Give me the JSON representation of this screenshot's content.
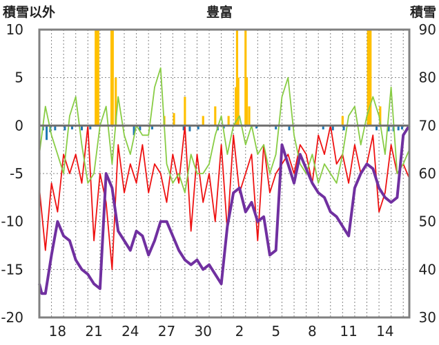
{
  "chart_data": {
    "type": "line",
    "title": "豊富",
    "left_axis_title": "積雪以外",
    "right_axis_title": "積雪",
    "left_ylim": [
      -20,
      10
    ],
    "left_ticks": [
      "10",
      "5",
      "0",
      "-5",
      "-10",
      "-15",
      "-20"
    ],
    "right_ylim": [
      30,
      90
    ],
    "right_ticks": [
      "90",
      "80",
      "70",
      "60",
      "50",
      "40",
      "30"
    ],
    "x_tick_labels": [
      "18",
      "21",
      "24",
      "27",
      "30",
      "2",
      "5",
      "8",
      "11",
      "14"
    ],
    "days_total": 30.5,
    "grid": true,
    "colors": {
      "plot_border": "#808080",
      "grid": "#808080",
      "zero_line": "#707070",
      "red_series": "#ee1111",
      "green_series": "#88cc44",
      "purple_series": "#7030a0",
      "orange_bars": "#ffc000",
      "blue_bars": "#1f77b4"
    },
    "series": [
      {
        "axis": "left",
        "x": [
          0,
          0.5,
          1,
          1.5,
          2,
          2.5,
          3,
          3.5,
          4,
          4.5,
          5,
          5.5,
          6,
          6.5,
          7,
          7.5,
          8,
          8.5,
          9,
          9.5,
          10,
          10.5,
          11,
          11.5,
          12,
          12.5,
          13,
          13.5,
          14,
          14.5,
          15,
          15.5,
          16,
          16.5,
          17,
          17.5,
          18,
          18.5,
          19,
          19.5,
          20,
          20.5,
          21,
          21.5,
          22,
          22.5,
          23,
          23.5,
          24,
          24.5,
          25,
          25.5,
          26,
          26.5,
          27,
          27.5,
          28,
          28.5,
          29,
          29.5,
          30,
          30.5
        ],
        "values": [
          -6.5,
          -13,
          -6,
          -9,
          -3,
          -5,
          -3,
          -6,
          0,
          -12,
          -5,
          -8,
          -15,
          -2,
          -7,
          -4,
          -6,
          -2,
          -7,
          -4,
          -5,
          -8,
          -3,
          -6,
          0,
          -11,
          -3,
          -8,
          -5,
          -10,
          -2,
          -11,
          -1,
          -7,
          -5,
          -3,
          -12,
          -2,
          -7,
          -5,
          -4,
          -3,
          -5,
          -2,
          -3,
          -6,
          -1,
          -3,
          0,
          -4,
          -3,
          -6,
          -2,
          -5,
          -4,
          -1,
          -9,
          -7,
          -2,
          -5,
          -4,
          -5.5
        ]
      },
      {
        "axis": "left",
        "x": [
          0,
          0.5,
          1,
          1.5,
          2,
          2.5,
          3,
          3.5,
          4,
          4.5,
          5,
          5.5,
          6,
          6.5,
          7,
          7.5,
          8,
          8.5,
          9,
          9.5,
          10,
          10.5,
          11,
          11.5,
          12,
          12.5,
          13,
          13.5,
          14,
          14.5,
          15,
          15.5,
          16,
          16.5,
          17,
          17.5,
          18,
          18.5,
          19,
          19.5,
          20,
          20.5,
          21,
          21.5,
          22,
          22.5,
          23,
          23.5,
          24,
          24.5,
          25,
          25.5,
          26,
          26.5,
          27,
          27.5,
          28,
          28.5,
          29,
          29.5,
          30,
          30.5
        ],
        "values": [
          -3,
          2,
          -1,
          -3,
          -5,
          1,
          3,
          -2,
          -6,
          -5,
          0,
          2,
          -4,
          3,
          -1,
          -3,
          0,
          -1,
          -1,
          4,
          6,
          -4,
          -6,
          -5,
          -7,
          -3,
          -5,
          -5,
          -4,
          -1,
          1,
          -3,
          0,
          1,
          -2,
          0,
          -3,
          -2,
          -5,
          -3,
          3,
          5,
          -1,
          -4,
          -5,
          -3,
          -6,
          -4,
          -5,
          -6,
          -3,
          1,
          2,
          -2,
          1,
          3,
          1,
          -3,
          4,
          -5,
          -4,
          -2.5
        ]
      },
      {
        "axis": "right",
        "x": [
          0,
          0.2,
          0.5,
          1,
          1.5,
          2,
          2.5,
          3,
          3.5,
          4,
          4.5,
          5,
          5.5,
          6,
          6.5,
          7,
          7.5,
          8,
          8.5,
          9,
          9.5,
          10,
          10.5,
          11,
          11.5,
          12,
          12.5,
          13,
          13.5,
          14,
          14.5,
          15,
          15.5,
          16,
          16.5,
          17,
          17.5,
          18,
          18.5,
          19,
          19.5,
          20,
          20.5,
          21,
          21.5,
          22,
          22.5,
          23,
          23.5,
          24,
          24.5,
          25,
          25.5,
          26,
          26.5,
          27,
          27.5,
          28,
          28.5,
          29,
          29.5,
          30,
          30.5
        ],
        "values": [
          37,
          35,
          35,
          43,
          50,
          47,
          46,
          42,
          40,
          39,
          37,
          36,
          60,
          57,
          48,
          46,
          44,
          48,
          47,
          43,
          46,
          50,
          50,
          47,
          44,
          42,
          41,
          42,
          40,
          41,
          39,
          37,
          49,
          56,
          57,
          52,
          54,
          50,
          51,
          43,
          44,
          66,
          62,
          58,
          64,
          61,
          58,
          56,
          55,
          52,
          51,
          49,
          47,
          57,
          60,
          62,
          61,
          57,
          55,
          54,
          55,
          68,
          70
        ]
      }
    ],
    "bars": {
      "axis": "left",
      "orange": [
        {
          "x": 4.65,
          "value": 10
        },
        {
          "x": 4.75,
          "value": 10
        },
        {
          "x": 4.85,
          "value": 10
        },
        {
          "x": 5.95,
          "value": 10
        },
        {
          "x": 6.05,
          "value": 10
        },
        {
          "x": 6.3,
          "value": 5
        },
        {
          "x": 10.3,
          "value": 1
        },
        {
          "x": 11.1,
          "value": 1.3
        },
        {
          "x": 12.0,
          "value": 3
        },
        {
          "x": 13.5,
          "value": 1
        },
        {
          "x": 14.5,
          "value": 2
        },
        {
          "x": 15.6,
          "value": 1
        },
        {
          "x": 16.2,
          "value": 4
        },
        {
          "x": 16.3,
          "value": 10
        },
        {
          "x": 16.4,
          "value": 5
        },
        {
          "x": 17.0,
          "value": 10
        },
        {
          "x": 17.1,
          "value": 5
        },
        {
          "x": 17.3,
          "value": 2
        },
        {
          "x": 25.0,
          "value": 1
        },
        {
          "x": 27.1,
          "value": 10
        },
        {
          "x": 27.2,
          "value": 10
        },
        {
          "x": 27.3,
          "value": 10
        },
        {
          "x": 28.1,
          "value": 2
        }
      ],
      "blue": [
        {
          "x": 0.3,
          "value": -0.5
        },
        {
          "x": 0.6,
          "value": -1.5
        },
        {
          "x": 0.9,
          "value": -0.7
        },
        {
          "x": 1.3,
          "value": -0.5
        },
        {
          "x": 2.1,
          "value": -0.5
        },
        {
          "x": 2.7,
          "value": -0.4
        },
        {
          "x": 3.5,
          "value": -0.5
        },
        {
          "x": 4.2,
          "value": -0.4
        },
        {
          "x": 7.8,
          "value": -1.0
        },
        {
          "x": 8.3,
          "value": -0.5
        },
        {
          "x": 9.3,
          "value": -0.4
        },
        {
          "x": 11.9,
          "value": -0.5
        },
        {
          "x": 12.4,
          "value": -0.6
        },
        {
          "x": 13.1,
          "value": -0.4
        },
        {
          "x": 14.7,
          "value": -0.5
        },
        {
          "x": 15.2,
          "value": -0.3
        },
        {
          "x": 17.9,
          "value": -0.3
        },
        {
          "x": 19.5,
          "value": -0.4
        },
        {
          "x": 20.6,
          "value": -0.5
        },
        {
          "x": 23.4,
          "value": -0.4
        },
        {
          "x": 24.2,
          "value": -0.5
        },
        {
          "x": 25.1,
          "value": -0.5
        },
        {
          "x": 27.8,
          "value": -0.5
        },
        {
          "x": 28.8,
          "value": -0.6
        },
        {
          "x": 29.2,
          "value": -0.6
        },
        {
          "x": 29.6,
          "value": -0.5
        },
        {
          "x": 29.9,
          "value": -0.4
        }
      ]
    }
  }
}
